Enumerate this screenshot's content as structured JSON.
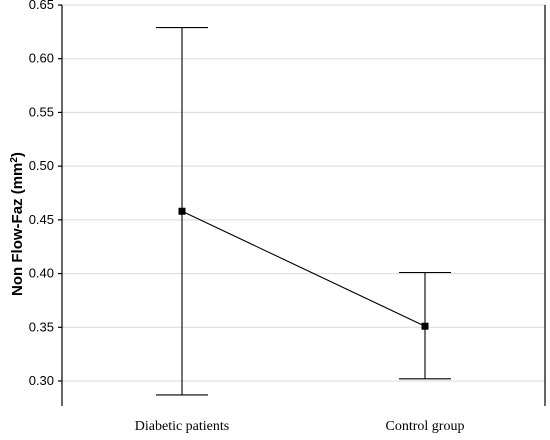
{
  "chart_data": {
    "type": "line",
    "categories": [
      "Diabetic patients",
      "Control group"
    ],
    "series": [
      {
        "values": [
          0.458,
          0.351
        ],
        "lower": [
          0.287,
          0.302
        ],
        "upper": [
          0.629,
          0.401
        ]
      }
    ],
    "ylabel_main": "Non Flow-Faz (mm",
    "ylabel_sup": "2",
    "ylabel_end": ")",
    "ylim": [
      0.28,
      0.65
    ],
    "yticks": [
      "0.30",
      "0.35",
      "0.40",
      "0.45",
      "0.50",
      "0.55",
      "0.60",
      "0.65"
    ],
    "grid": true,
    "colors": {
      "line": "#000000",
      "grid": "#d9d9d9"
    }
  }
}
